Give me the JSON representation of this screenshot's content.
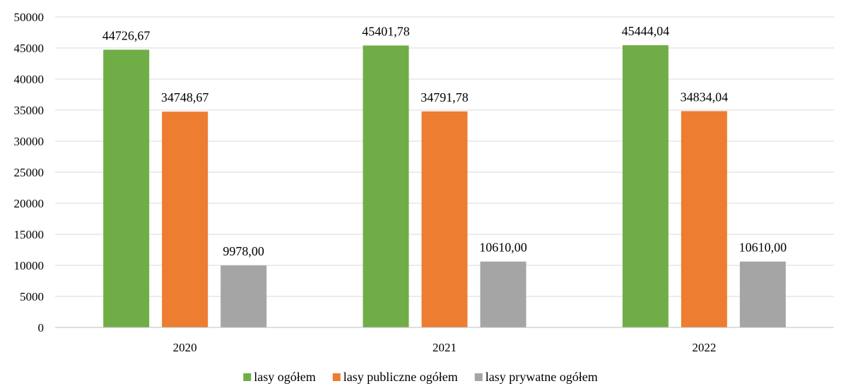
{
  "chart_data": {
    "type": "bar",
    "title": "",
    "xlabel": "",
    "ylabel": "",
    "categories": [
      "2020",
      "2021",
      "2022"
    ],
    "ylim": [
      0,
      50000
    ],
    "yticks": [
      0,
      5000,
      10000,
      15000,
      20000,
      25000,
      30000,
      35000,
      40000,
      45000,
      50000
    ],
    "grid": true,
    "legend_position": "bottom",
    "series": [
      {
        "name": "lasy ogółem",
        "color": "#70ad47",
        "values": [
          44726.67,
          45401.78,
          45444.04
        ],
        "labels": [
          "44726,67",
          "45401,78",
          "45444,04"
        ]
      },
      {
        "name": "lasy publiczne ogółem",
        "color": "#ed7d31",
        "values": [
          34748.67,
          34791.78,
          34834.04
        ],
        "labels": [
          "34748,67",
          "34791,78",
          "34834,04"
        ]
      },
      {
        "name": "lasy prywatne ogółem",
        "color": "#a5a5a5",
        "values": [
          9978.0,
          10610.0,
          10610.0
        ],
        "labels": [
          "9978,00",
          "10610,00",
          "10610,00"
        ]
      }
    ]
  }
}
